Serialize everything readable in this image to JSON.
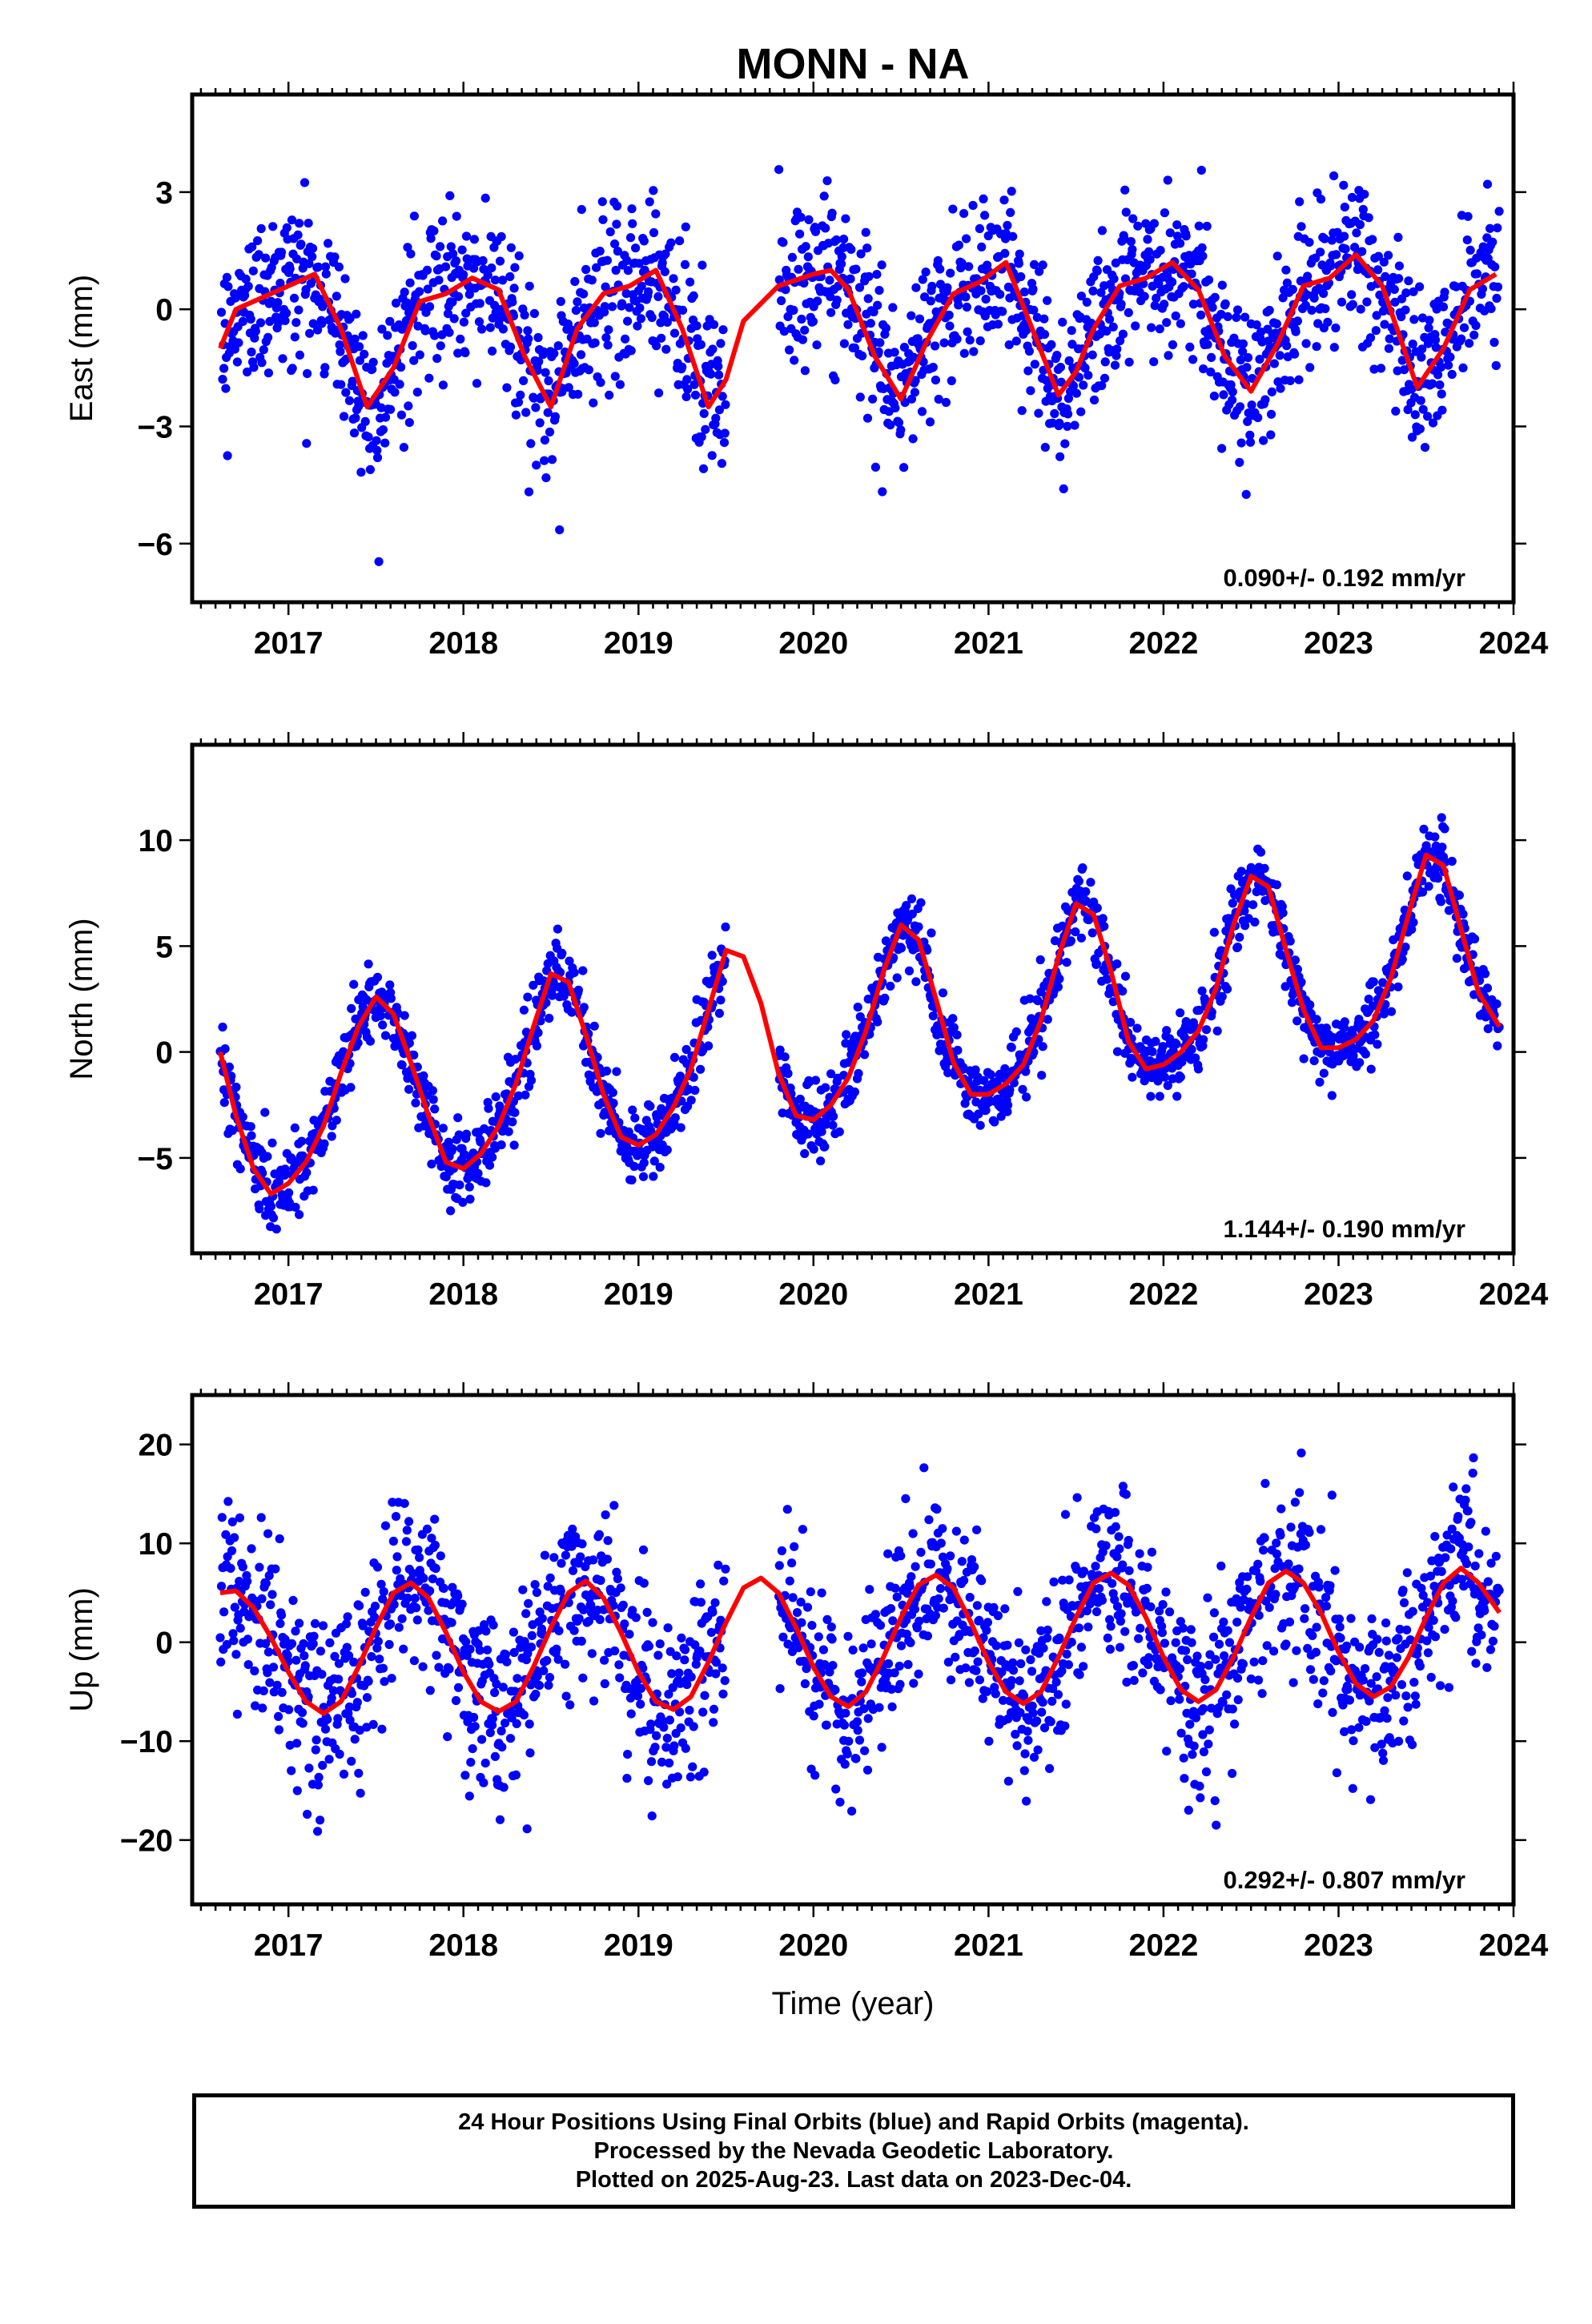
{
  "chart_data": {
    "type": "scatter",
    "title": "MONN - NA",
    "xlabel": "Time (year)",
    "x_ticks": [
      2017,
      2018,
      2019,
      2020,
      2021,
      2022,
      2023,
      2024
    ],
    "xlim": [
      2016.45,
      2024.0
    ],
    "data_start": 2016.61,
    "data_end": 2023.92,
    "data_gap": [
      2019.5,
      2019.8
    ],
    "colors": {
      "points": "#0000ff",
      "fit": "#ff0000",
      "frame": "#000000"
    },
    "panels": [
      {
        "name": "east",
        "ylabel": "East (mm)",
        "ylim": [
          -7.5,
          5.5
        ],
        "yticks": [
          -6,
          -3,
          0,
          3
        ],
        "rate_text": "0.090+/- 0.192 mm/yr",
        "fit": {
          "x": [
            2016.61,
            2016.7,
            2016.85,
            2017.0,
            2017.15,
            2017.3,
            2017.45,
            2017.6,
            2017.75,
            2017.9,
            2018.05,
            2018.2,
            2018.35,
            2018.5,
            2018.65,
            2018.8,
            2018.95,
            2019.1,
            2019.25,
            2019.4,
            2019.5,
            2019.6,
            2019.8,
            2020.0,
            2020.1,
            2020.2,
            2020.35,
            2020.5,
            2020.65,
            2020.8,
            2020.95,
            2021.1,
            2021.25,
            2021.4,
            2021.5,
            2021.6,
            2021.75,
            2021.9,
            2022.05,
            2022.2,
            2022.35,
            2022.5,
            2022.65,
            2022.8,
            2022.95,
            2023.1,
            2023.25,
            2023.45,
            2023.6,
            2023.75,
            2023.9
          ],
          "y": [
            -1.0,
            0.0,
            0.3,
            0.6,
            0.9,
            -0.5,
            -2.5,
            -1.5,
            0.2,
            0.4,
            0.8,
            0.5,
            -1.2,
            -2.5,
            -0.5,
            0.4,
            0.6,
            1.0,
            -0.5,
            -2.5,
            -1.8,
            -0.3,
            0.6,
            0.9,
            1.0,
            0.5,
            -1.2,
            -2.3,
            -0.8,
            0.4,
            0.7,
            1.2,
            -0.5,
            -2.2,
            -1.6,
            -0.5,
            0.6,
            0.8,
            1.2,
            0.5,
            -1.2,
            -2.1,
            -0.9,
            0.6,
            0.8,
            1.4,
            0.6,
            -2.0,
            -1.0,
            0.5,
            0.9
          ]
        }
      },
      {
        "name": "north",
        "ylabel": "North (mm)",
        "ylim": [
          -9.5,
          14.5
        ],
        "yticks": [
          -5,
          0,
          5,
          10
        ],
        "rate_text": "1.144+/- 0.190 mm/yr",
        "fit": {
          "x": [
            2016.61,
            2016.7,
            2016.8,
            2016.9,
            2017.0,
            2017.1,
            2017.2,
            2017.3,
            2017.4,
            2017.5,
            2017.6,
            2017.7,
            2017.8,
            2017.9,
            2018.0,
            2018.1,
            2018.2,
            2018.3,
            2018.4,
            2018.5,
            2018.6,
            2018.7,
            2018.8,
            2018.9,
            2019.0,
            2019.1,
            2019.2,
            2019.3,
            2019.4,
            2019.5,
            2019.6,
            2019.7,
            2019.8,
            2019.9,
            2020.0,
            2020.1,
            2020.2,
            2020.3,
            2020.4,
            2020.5,
            2020.6,
            2020.7,
            2020.8,
            2020.9,
            2021.0,
            2021.1,
            2021.2,
            2021.3,
            2021.4,
            2021.5,
            2021.6,
            2021.7,
            2021.8,
            2021.9,
            2022.0,
            2022.1,
            2022.2,
            2022.3,
            2022.4,
            2022.5,
            2022.6,
            2022.7,
            2022.8,
            2022.9,
            2023.0,
            2023.1,
            2023.2,
            2023.3,
            2023.4,
            2023.5,
            2023.6,
            2023.7,
            2023.8,
            2023.92
          ],
          "y": [
            0.0,
            -3.0,
            -5.5,
            -6.7,
            -6.2,
            -5.2,
            -3.5,
            -1.0,
            1.2,
            2.6,
            1.8,
            -0.5,
            -3.0,
            -5.2,
            -5.5,
            -4.8,
            -3.5,
            -1.5,
            1.2,
            3.7,
            3.3,
            0.8,
            -2.0,
            -4.0,
            -4.4,
            -3.9,
            -2.6,
            -0.8,
            2.0,
            4.8,
            4.5,
            2.3,
            -1.0,
            -3.0,
            -3.2,
            -2.5,
            -1.2,
            1.0,
            3.8,
            6.0,
            5.3,
            2.5,
            -0.5,
            -2.0,
            -2.0,
            -1.5,
            -0.6,
            1.5,
            4.5,
            7.0,
            6.5,
            3.8,
            0.5,
            -0.8,
            -0.6,
            0.0,
            1.0,
            3.0,
            6.0,
            8.3,
            7.8,
            4.8,
            2.0,
            0.2,
            0.2,
            0.6,
            1.5,
            3.5,
            6.5,
            9.3,
            8.8,
            5.8,
            2.8,
            1.2
          ]
        }
      },
      {
        "name": "up",
        "ylabel": "Up (mm)",
        "ylim": [
          -26.5,
          25
        ],
        "yticks": [
          -20,
          -10,
          0,
          10,
          20
        ],
        "rate_text": "0.292+/- 0.807 mm/yr",
        "fit": {
          "x": [
            2016.61,
            2016.7,
            2016.8,
            2016.9,
            2017.0,
            2017.1,
            2017.2,
            2017.3,
            2017.4,
            2017.5,
            2017.6,
            2017.7,
            2017.8,
            2017.9,
            2018.0,
            2018.1,
            2018.2,
            2018.3,
            2018.4,
            2018.5,
            2018.6,
            2018.7,
            2018.8,
            2018.9,
            2019.0,
            2019.1,
            2019.2,
            2019.3,
            2019.4,
            2019.5,
            2019.6,
            2019.7,
            2019.8,
            2019.9,
            2020.0,
            2020.1,
            2020.2,
            2020.3,
            2020.4,
            2020.5,
            2020.6,
            2020.7,
            2020.8,
            2020.9,
            2021.0,
            2021.1,
            2021.2,
            2021.3,
            2021.4,
            2021.5,
            2021.6,
            2021.7,
            2021.8,
            2021.9,
            2022.0,
            2022.1,
            2022.2,
            2022.3,
            2022.4,
            2022.5,
            2022.6,
            2022.7,
            2022.8,
            2022.9,
            2023.0,
            2023.1,
            2023.2,
            2023.3,
            2023.4,
            2023.5,
            2023.6,
            2023.7,
            2023.8,
            2023.92
          ],
          "y": [
            5.0,
            5.2,
            3.5,
            0.5,
            -3.0,
            -6.0,
            -7.2,
            -6.0,
            -2.5,
            1.5,
            5.0,
            6.0,
            4.5,
            1.0,
            -3.0,
            -6.0,
            -7.0,
            -6.0,
            -2.5,
            1.5,
            5.0,
            6.2,
            4.5,
            1.0,
            -3.0,
            -6.0,
            -6.8,
            -5.5,
            -2.0,
            2.0,
            5.5,
            6.5,
            5.0,
            1.5,
            -2.5,
            -5.5,
            -6.5,
            -5.0,
            -1.5,
            2.5,
            5.8,
            6.8,
            5.5,
            2.0,
            -2.0,
            -5.0,
            -6.2,
            -5.0,
            -1.5,
            2.5,
            6.0,
            7.0,
            5.8,
            2.5,
            -1.5,
            -4.8,
            -6.0,
            -4.8,
            -1.5,
            2.5,
            6.0,
            7.2,
            6.0,
            3.0,
            -1.0,
            -4.2,
            -5.5,
            -4.5,
            -1.5,
            2.5,
            6.0,
            7.5,
            6.0,
            3.0
          ]
        }
      }
    ]
  },
  "footer": {
    "line1": "24 Hour Positions Using Final Orbits (blue) and Rapid Orbits (magenta).",
    "line2": "Processed by the Nevada Geodetic Laboratory.",
    "line3": "Plotted on 2025-Aug-23. Last data on 2023-Dec-04."
  }
}
